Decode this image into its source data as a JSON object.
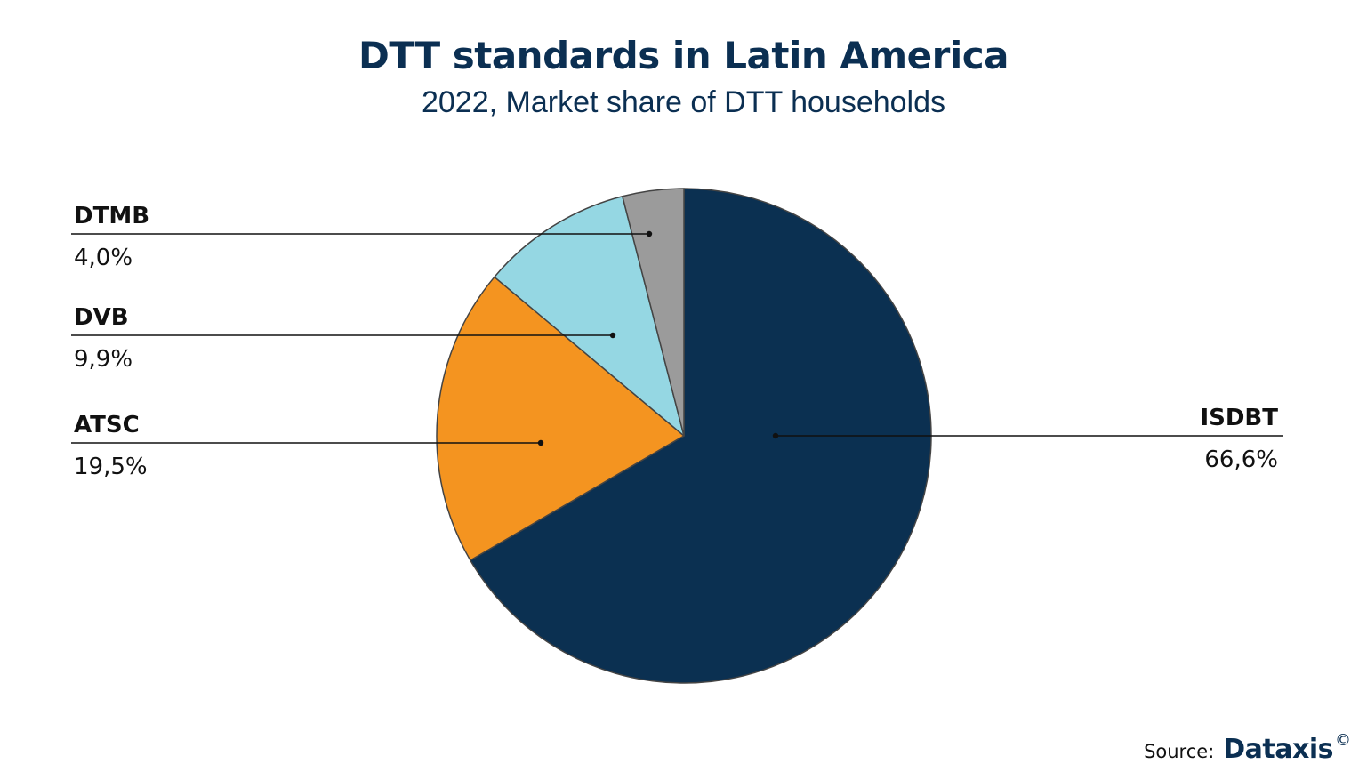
{
  "title": "DTT standards in Latin America",
  "subtitle": "2022, Market share of DTT households",
  "source": {
    "label": "Source:",
    "brand": "Dataxis",
    "brand_mark": "©"
  },
  "chart_data": {
    "type": "pie",
    "title": "DTT standards in Latin America",
    "subtitle": "2022, Market share of DTT households",
    "start_angle": "12 o'clock",
    "direction": "clockwise",
    "slices": [
      {
        "name": "ISDBT",
        "value": 66.6,
        "label": "66,6%",
        "color": "#0b3051"
      },
      {
        "name": "ATSC",
        "value": 19.5,
        "label": "19,5%",
        "color": "#f49420"
      },
      {
        "name": "DVB",
        "value": 9.9,
        "label": "9,9%",
        "color": "#95d7e3"
      },
      {
        "name": "DTMB",
        "value": 4.0,
        "label": "4,0%",
        "color": "#9b9b9b"
      }
    ]
  }
}
